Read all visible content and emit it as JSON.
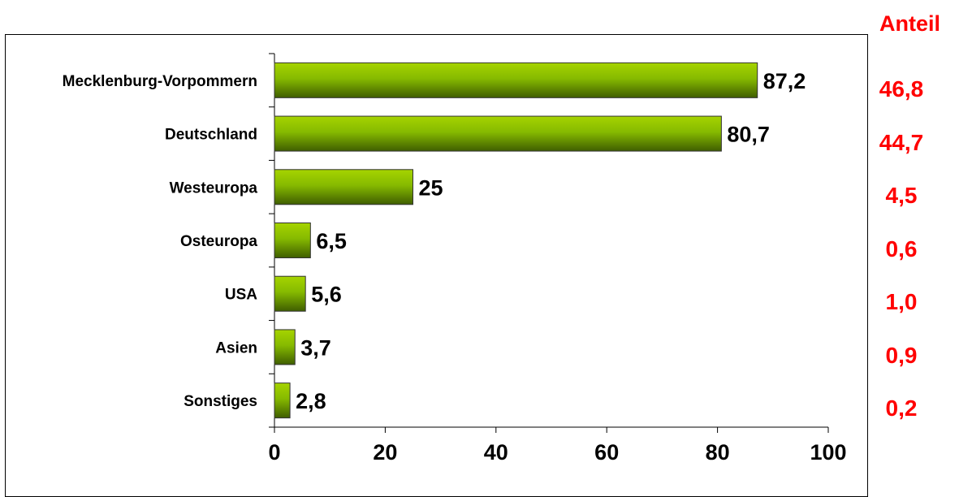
{
  "chart_data": {
    "type": "bar",
    "orientation": "horizontal",
    "categories": [
      "Mecklenburg-Vorpommern",
      "Deutschland",
      "Westeuropa",
      "Osteuropa",
      "USA",
      "Asien",
      "Sonstiges"
    ],
    "values": [
      87.2,
      80.7,
      25,
      6.5,
      5.6,
      3.7,
      2.8
    ],
    "value_labels": [
      "87,2",
      "80,7",
      "25",
      "6,5",
      "5,6",
      "3,7",
      "2,8"
    ],
    "xlim": [
      0,
      100
    ],
    "x_ticks": [
      0,
      20,
      40,
      60,
      80,
      100
    ],
    "x_tick_labels": [
      "0",
      "20",
      "40",
      "60",
      "80",
      "100"
    ],
    "grid": false,
    "bar_color": "#7bb000",
    "bar_color_light": "#9acd00",
    "bar_color_dark": "#3f5e00"
  },
  "share": {
    "header": "Anteil",
    "values": [
      "46,8",
      "44,7",
      "4,5",
      "0,6",
      "1,0",
      "0,9",
      "0,2"
    ],
    "color": "#ff0000"
  }
}
